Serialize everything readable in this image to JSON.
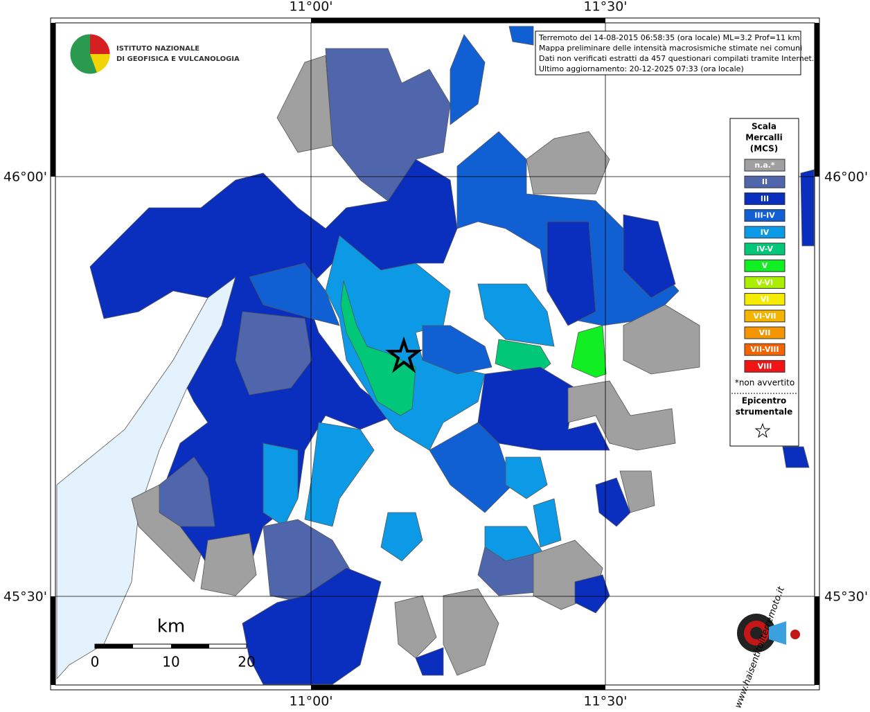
{
  "header": {
    "institute": [
      "ISTITUTO NAZIONALE",
      "DI GEOFISICA E VULCANOLOGIA"
    ]
  },
  "info": [
    "Terremoto del 14-08-2015 06:58:35 (ora locale) ML=3.2 Prof=11 km",
    "Mappa preliminare delle intensità macrosismiche stimate nei comuni",
    "Dati non verificati estratti da 457 questionari compilati tramite Internet.",
    "Ultimo aggiornamento: 20-12-2025 07:33 (ora locale)"
  ],
  "grid": {
    "lon_labels": [
      "11°00'",
      "11°30'"
    ],
    "lat_labels": [
      "46°00'",
      "45°30'"
    ]
  },
  "legend": {
    "title": [
      "Scala",
      "Mercalli",
      "(MCS)"
    ],
    "items": [
      {
        "label": "n.a.*",
        "color": "#a0a0a0"
      },
      {
        "label": "II",
        "color": "#4f66ad"
      },
      {
        "label": "III",
        "color": "#0a2fbf"
      },
      {
        "label": "III-IV",
        "color": "#1060d4"
      },
      {
        "label": "IV",
        "color": "#0c9ae6"
      },
      {
        "label": "IV-V",
        "color": "#00c878"
      },
      {
        "label": "V",
        "color": "#11ee22"
      },
      {
        "label": "V-VI",
        "color": "#aaee00"
      },
      {
        "label": "VI",
        "color": "#f5ec00"
      },
      {
        "label": "VI-VII",
        "color": "#f5b400"
      },
      {
        "label": "VII",
        "color": "#f59600"
      },
      {
        "label": "VII-VIII",
        "color": "#f56400"
      },
      {
        "label": "VIII",
        "color": "#f01414"
      }
    ],
    "note": "*non avvertito",
    "epicenter": [
      "Epicentro",
      "strumentale"
    ]
  },
  "scale": {
    "unit": "km",
    "labels": [
      "0",
      "10",
      "20"
    ]
  },
  "logo": "www.haisentitoilterremoto.it"
}
